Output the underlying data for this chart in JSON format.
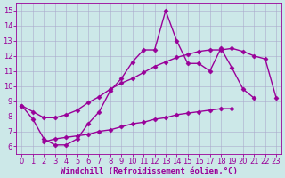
{
  "bg_color": "#cce8e8",
  "grid_color": "#aaaacc",
  "line_color": "#990099",
  "marker": "D",
  "markersize": 2.5,
  "linewidth": 1.0,
  "xlabel": "Windchill (Refroidissement éolien,°C)",
  "xlabel_fontsize": 6.5,
  "tick_fontsize": 6,
  "xlim": [
    -0.5,
    23.5
  ],
  "ylim": [
    5.5,
    15.5
  ],
  "yticks": [
    6,
    7,
    8,
    9,
    10,
    11,
    12,
    13,
    14,
    15
  ],
  "xticks": [
    0,
    1,
    2,
    3,
    4,
    5,
    6,
    7,
    8,
    9,
    10,
    11,
    12,
    13,
    14,
    15,
    16,
    17,
    18,
    19,
    20,
    21,
    22,
    23
  ],
  "series": [
    [
      8.7,
      7.8,
      6.5,
      6.1,
      6.1,
      6.5,
      7.5,
      8.3,
      9.7,
      10.5,
      11.6,
      12.4,
      12.4,
      15.0,
      13.0,
      11.5,
      11.5,
      11.0,
      12.5,
      11.2,
      9.8,
      9.2
    ],
    [
      8.7,
      8.3,
      7.9,
      7.9,
      8.1,
      8.4,
      8.9,
      9.3,
      9.8,
      10.2,
      10.5,
      10.9,
      11.3,
      11.6,
      11.9,
      12.1,
      12.3,
      12.4,
      12.4,
      12.5,
      12.3,
      12.0,
      11.8,
      9.2
    ],
    [
      6.3,
      6.5,
      6.6,
      6.7,
      6.8,
      7.0,
      7.1,
      7.3,
      7.5,
      7.6,
      7.8,
      7.9,
      8.1,
      8.2,
      8.3,
      8.4,
      8.5,
      8.5
    ]
  ],
  "series_x": [
    [
      0,
      1,
      2,
      3,
      4,
      5,
      6,
      7,
      8,
      9,
      10,
      11,
      12,
      13,
      14,
      15,
      16,
      17,
      18,
      19,
      20,
      21
    ],
    [
      0,
      1,
      2,
      3,
      4,
      5,
      6,
      7,
      8,
      9,
      10,
      11,
      12,
      13,
      14,
      15,
      16,
      17,
      18,
      19,
      20,
      21,
      22,
      23
    ],
    [
      2,
      3,
      4,
      5,
      6,
      7,
      8,
      9,
      10,
      11,
      12,
      13,
      14,
      15,
      16,
      17,
      18,
      19
    ]
  ]
}
